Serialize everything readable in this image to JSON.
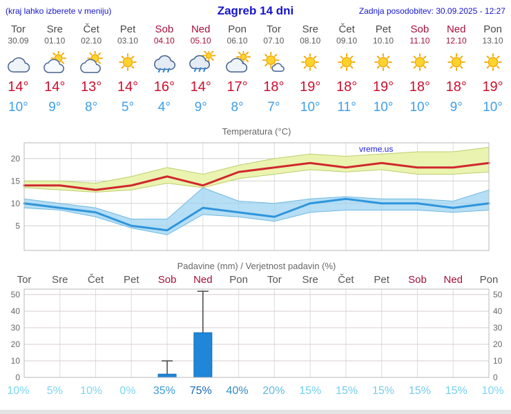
{
  "header": {
    "note": "(kraj lahko izberete v meniju)",
    "title": "Zagreb 14 dni",
    "updated": "Zadnja posodobitev: 30.09.2025 - 12:27"
  },
  "colors": {
    "accent_blue": "#1515cc",
    "weekend": "#a3103a",
    "weekday": "#4a4a4a",
    "temp_high": "#cb0e2c",
    "temp_low": "#3e9ee9",
    "grid": "#dcdcdc",
    "plot_border": "#b8b8b8",
    "chart_text": "#666666",
    "watermark_blue": "#1a1adf"
  },
  "forecast": {
    "days": [
      {
        "name": "Tor",
        "date": "30.09",
        "icon": "cloudy",
        "high": "14°",
        "low": "10°",
        "weekend": false
      },
      {
        "name": "Sre",
        "date": "01.10",
        "icon": "partly-cloudy",
        "high": "14°",
        "low": "9°",
        "weekend": false
      },
      {
        "name": "Čet",
        "date": "02.10",
        "icon": "partly-cloudy",
        "high": "13°",
        "low": "8°",
        "weekend": false
      },
      {
        "name": "Pet",
        "date": "03.10",
        "icon": "sunny",
        "high": "14°",
        "low": "5°",
        "weekend": false
      },
      {
        "name": "Sob",
        "date": "04.10",
        "icon": "rain",
        "high": "16°",
        "low": "4°",
        "weekend": true
      },
      {
        "name": "Ned",
        "date": "05.10",
        "icon": "rain-sun",
        "high": "14°",
        "low": "9°",
        "weekend": true
      },
      {
        "name": "Pon",
        "date": "06.10",
        "icon": "mostly-cloudy",
        "high": "17°",
        "low": "8°",
        "weekend": false
      },
      {
        "name": "Tor",
        "date": "07.10",
        "icon": "mostly-sunny",
        "high": "18°",
        "low": "7°",
        "weekend": false
      },
      {
        "name": "Sre",
        "date": "08.10",
        "icon": "sunny",
        "high": "19°",
        "low": "10°",
        "weekend": false
      },
      {
        "name": "Čet",
        "date": "09.10",
        "icon": "sunny",
        "high": "18°",
        "low": "11°",
        "weekend": false
      },
      {
        "name": "Pet",
        "date": "10.10",
        "icon": "sunny",
        "high": "19°",
        "low": "10°",
        "weekend": false
      },
      {
        "name": "Sob",
        "date": "11.10",
        "icon": "sunny",
        "high": "18°",
        "low": "10°",
        "weekend": true
      },
      {
        "name": "Ned",
        "date": "12.10",
        "icon": "sunny",
        "high": "18°",
        "low": "9°",
        "weekend": true
      },
      {
        "name": "Pon",
        "date": "13.10",
        "icon": "sunny",
        "high": "19°",
        "low": "10°",
        "weekend": false
      }
    ]
  },
  "chart_data": [
    {
      "type": "area",
      "title": "Temperatura (°C)",
      "watermark": "vreme.us",
      "categories": [
        "Tor",
        "Sre",
        "Čet",
        "Pet",
        "Sob",
        "Ned",
        "Pon",
        "Tor",
        "Sre",
        "Čet",
        "Pet",
        "Sob",
        "Ned",
        "Pon"
      ],
      "xlabel": "",
      "ylabel": "",
      "ylim": [
        -0.5,
        23.5
      ],
      "yticks": [
        5,
        10,
        15,
        20
      ],
      "grid": true,
      "band_colors": {
        "max": "#e9f2ab",
        "max_edge": "#bccf6e",
        "min": "#9ed3f0",
        "min_edge": "#6fb9e2"
      },
      "series": [
        {
          "name": "temp-max",
          "color": "#d0272e",
          "values": [
            14,
            14,
            13,
            14,
            16,
            14,
            17,
            18,
            19,
            18,
            19,
            18,
            18,
            19
          ]
        },
        {
          "name": "temp-max-range-upper",
          "values": [
            15,
            15,
            14.5,
            16,
            18,
            16.5,
            18.5,
            20,
            21,
            20.5,
            21,
            21.5,
            21.5,
            22.5
          ]
        },
        {
          "name": "temp-max-range-lower",
          "values": [
            13.5,
            13,
            12.5,
            13,
            14.5,
            13.5,
            15.5,
            16.5,
            17.5,
            17,
            17.5,
            16.5,
            16.5,
            17
          ]
        },
        {
          "name": "temp-min",
          "color": "#2e95dc",
          "values": [
            10,
            9,
            8,
            5,
            4,
            9,
            8,
            7,
            10,
            11,
            10,
            10,
            9,
            10
          ]
        },
        {
          "name": "temp-min-range-upper",
          "values": [
            11,
            10,
            9,
            6.5,
            6.5,
            13.5,
            10.5,
            10,
            11,
            11.5,
            11,
            11,
            10.5,
            13
          ]
        },
        {
          "name": "temp-min-range-lower",
          "values": [
            9,
            8.5,
            7,
            4.5,
            3,
            7.5,
            7,
            6,
            8,
            8.5,
            8.5,
            8.5,
            8,
            8.5
          ]
        }
      ]
    },
    {
      "type": "bar",
      "title": "Padavine (mm) / Verjetnost padavin (%)",
      "categories": [
        {
          "label": "Tor",
          "weekend": false
        },
        {
          "label": "Sre",
          "weekend": false
        },
        {
          "label": "Čet",
          "weekend": false
        },
        {
          "label": "Pet",
          "weekend": false
        },
        {
          "label": "Sob",
          "weekend": true
        },
        {
          "label": "Ned",
          "weekend": true
        },
        {
          "label": "Pon",
          "weekend": false
        },
        {
          "label": "Tor",
          "weekend": false
        },
        {
          "label": "Sre",
          "weekend": false
        },
        {
          "label": "Čet",
          "weekend": false
        },
        {
          "label": "Pet",
          "weekend": false
        },
        {
          "label": "Sob",
          "weekend": true
        },
        {
          "label": "Ned",
          "weekend": true
        },
        {
          "label": "Pon",
          "weekend": false
        }
      ],
      "xlabel": "",
      "ylabel": "",
      "ylim": [
        0,
        53.3
      ],
      "yticks": [
        0,
        10,
        20,
        30,
        40,
        50
      ],
      "grid": true,
      "bar_color": "#1f86d8",
      "bar_edge": "#176eb4",
      "values": [
        0,
        0,
        0,
        0,
        2,
        27,
        0,
        0,
        0,
        0,
        0,
        0,
        0,
        0
      ],
      "whisker_max": [
        null,
        null,
        null,
        null,
        10,
        52,
        null,
        null,
        null,
        null,
        null,
        null,
        null,
        null
      ],
      "probabilities": [
        {
          "label": "10%",
          "color": "#7cd6f0"
        },
        {
          "label": "5%",
          "color": "#7cd6f0"
        },
        {
          "label": "10%",
          "color": "#7cd6f0"
        },
        {
          "label": "0%",
          "color": "#7cd6f0"
        },
        {
          "label": "35%",
          "color": "#3d9bd4"
        },
        {
          "label": "75%",
          "color": "#1a67b6"
        },
        {
          "label": "40%",
          "color": "#2f8bc9"
        },
        {
          "label": "20%",
          "color": "#5fb9e2"
        },
        {
          "label": "15%",
          "color": "#74cdeb"
        },
        {
          "label": "15%",
          "color": "#74cdeb"
        },
        {
          "label": "15%",
          "color": "#74cdeb"
        },
        {
          "label": "15%",
          "color": "#74cdeb"
        },
        {
          "label": "15%",
          "color": "#74cdeb"
        },
        {
          "label": "10%",
          "color": "#7cd6f0"
        }
      ]
    }
  ]
}
